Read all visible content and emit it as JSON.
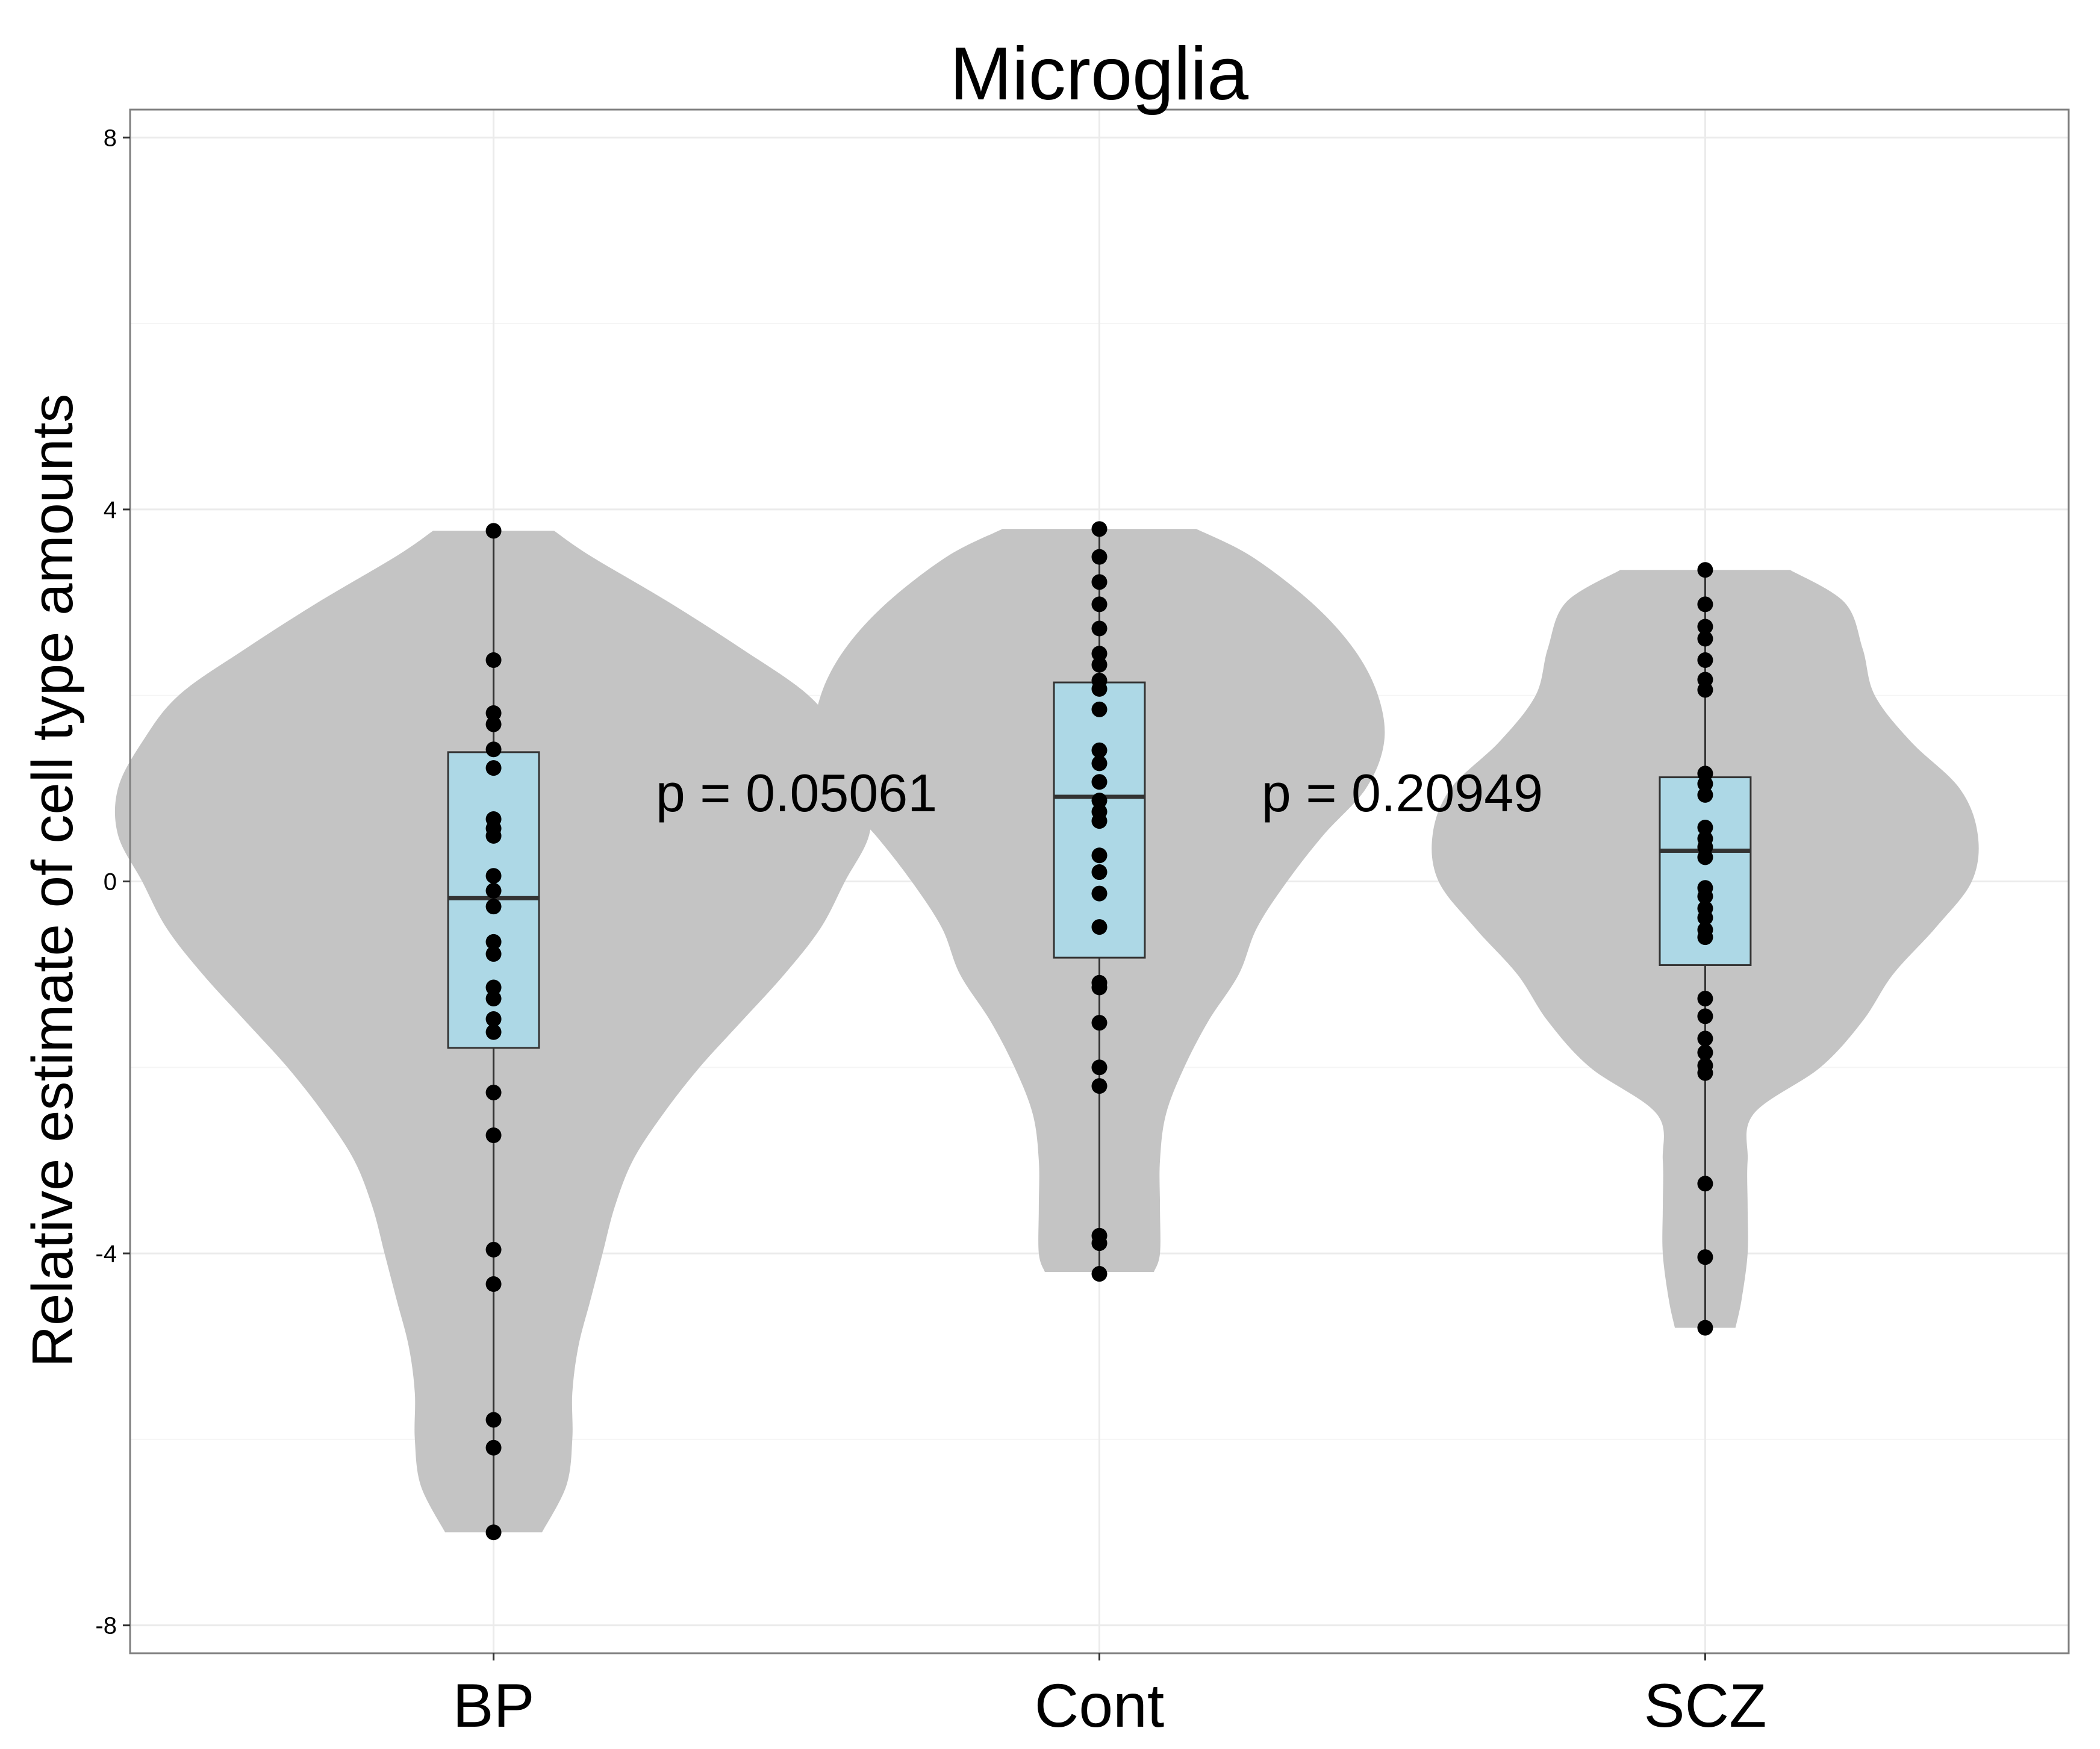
{
  "chart_data": {
    "type": "violin",
    "title": "Microglia",
    "xlabel": "",
    "ylabel": "Relative estimate of cell type amounts",
    "categories": [
      "BP",
      "Cont",
      "SCZ"
    ],
    "ylim": [
      -8.3,
      8.3
    ],
    "yticks": [
      8,
      4,
      0,
      -4,
      -8
    ],
    "ytick_labels": [
      "8",
      "4",
      "0",
      "-4",
      "-8"
    ],
    "grid": true,
    "colors": {
      "violin": "#c4c4c4",
      "box": "#add8e6",
      "points": "#000000",
      "panel_border": "#7f7f7f",
      "grid_major": "#ebebeb",
      "grid_minor": "#f5f5f5"
    },
    "annotations": [
      {
        "text": "p = 0.05061",
        "x": 1.5,
        "y": 0.95
      },
      {
        "text": "p = 0.20949",
        "x": 2.5,
        "y": 0.95
      }
    ],
    "series": [
      {
        "category": "BP",
        "box": {
          "q1": -1.79,
          "median": -0.18,
          "q3": 1.39,
          "whisker_low": -7.0,
          "whisker_high": 3.77
        },
        "violin": {
          "y": [
            3.77,
            3.5,
            3.0,
            2.5,
            2.0,
            1.5,
            1.0,
            0.5,
            0.0,
            -0.5,
            -1.0,
            -1.5,
            -2.0,
            -2.5,
            -3.0,
            -3.5,
            -4.0,
            -4.5,
            -5.0,
            -5.5,
            -6.0,
            -6.5,
            -7.0
          ],
          "width": [
            0.1,
            0.16,
            0.29,
            0.41,
            0.52,
            0.58,
            0.62,
            0.62,
            0.58,
            0.54,
            0.48,
            0.41,
            0.34,
            0.28,
            0.23,
            0.2,
            0.18,
            0.16,
            0.14,
            0.13,
            0.13,
            0.12,
            0.08
          ]
        },
        "points": [
          3.77,
          2.38,
          1.81,
          1.69,
          1.42,
          1.22,
          0.67,
          0.57,
          0.49,
          0.06,
          -0.1,
          -0.27,
          -0.65,
          -0.78,
          -1.14,
          -1.26,
          -1.48,
          -1.62,
          -2.27,
          -2.73,
          -3.96,
          -4.33,
          -5.79,
          -6.09,
          -7.0
        ]
      },
      {
        "category": "Cont",
        "box": {
          "q1": -0.82,
          "median": 0.91,
          "q3": 2.14,
          "whisker_low": -4.22,
          "whisker_high": 3.79
        },
        "violin": {
          "y": [
            3.79,
            3.5,
            3.0,
            2.5,
            2.0,
            1.5,
            1.0,
            0.5,
            0.0,
            -0.5,
            -1.0,
            -1.5,
            -2.0,
            -2.5,
            -3.0,
            -3.5,
            -4.0,
            -4.2
          ],
          "width": [
            0.16,
            0.25,
            0.35,
            0.42,
            0.46,
            0.47,
            0.44,
            0.37,
            0.31,
            0.26,
            0.23,
            0.18,
            0.14,
            0.11,
            0.1,
            0.1,
            0.1,
            0.09
          ]
        },
        "points": [
          3.79,
          3.49,
          3.22,
          2.98,
          2.72,
          2.45,
          2.33,
          2.16,
          2.07,
          1.85,
          1.41,
          1.27,
          1.07,
          0.87,
          0.75,
          0.65,
          0.28,
          0.1,
          -0.13,
          -0.49,
          -1.09,
          -1.14,
          -1.52,
          -2.0,
          -2.2,
          -3.81,
          -3.89,
          -4.22
        ]
      },
      {
        "category": "SCZ",
        "box": {
          "q1": -0.9,
          "median": 0.33,
          "q3": 1.12,
          "whisker_low": -4.8,
          "whisker_high": 3.35
        },
        "violin": {
          "y": [
            3.35,
            3.0,
            2.5,
            2.0,
            1.5,
            1.0,
            0.5,
            0.0,
            -0.5,
            -1.0,
            -1.5,
            -2.0,
            -2.5,
            -3.0,
            -3.5,
            -4.0,
            -4.5,
            -4.8
          ],
          "width": [
            0.14,
            0.23,
            0.26,
            0.28,
            0.34,
            0.42,
            0.45,
            0.44,
            0.38,
            0.31,
            0.26,
            0.19,
            0.08,
            0.07,
            0.07,
            0.07,
            0.06,
            0.05
          ]
        },
        "points": [
          3.35,
          2.98,
          2.74,
          2.61,
          2.38,
          2.17,
          2.06,
          1.16,
          1.05,
          0.93,
          0.58,
          0.46,
          0.37,
          0.26,
          -0.07,
          -0.16,
          -0.29,
          -0.39,
          -0.52,
          -0.6,
          -1.26,
          -1.45,
          -1.69,
          -1.84,
          -1.98,
          -2.06,
          -3.25,
          -4.04,
          -4.8
        ]
      }
    ]
  }
}
